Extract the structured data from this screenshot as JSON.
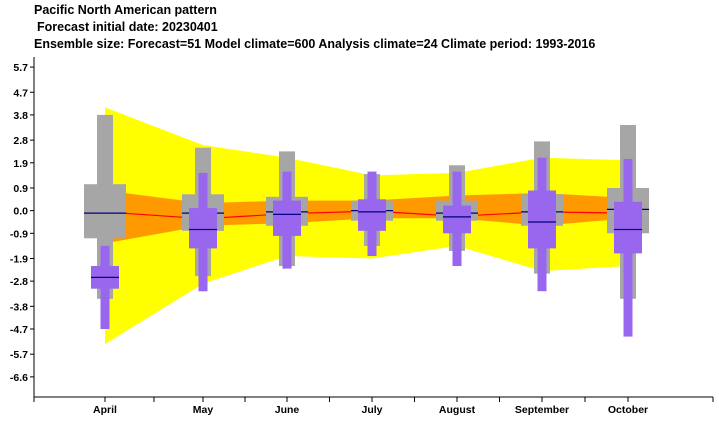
{
  "chart_data": {
    "type": "box",
    "title": "Pacific North American pattern",
    "subtitle": "Forecast initial date: 20230401",
    "info": "Ensemble size: Forecast=51 Model climate=600 Analysis climate=24   Climate period: 1993-2016",
    "categories": [
      "April",
      "May",
      "June",
      "July",
      "August",
      "September",
      "October"
    ],
    "yticks": [
      "5.7",
      "4.7",
      "3.8",
      "2.8",
      "1.9",
      "0.9",
      "0.0",
      "-0.9",
      "-1.9",
      "-2.8",
      "-3.8",
      "-4.7",
      "-5.7",
      "-6.6"
    ],
    "ylim": [
      -7.4,
      6.1
    ],
    "colors": {
      "analysis_outer": "#ffff00",
      "analysis_inner": "#ff9900",
      "analysis_median": "#ff0000",
      "model_climate": "#a6a6a6",
      "forecast": "#9966ee",
      "median_line": "#000080"
    },
    "analysis_climate": {
      "outer_upper": [
        4.1,
        2.6,
        2.1,
        1.4,
        1.5,
        2.1,
        2.0
      ],
      "outer_lower": [
        -5.3,
        -2.9,
        -1.8,
        -1.9,
        -1.4,
        -2.4,
        -2.2
      ],
      "inner_upper": [
        0.8,
        0.3,
        0.4,
        0.4,
        0.6,
        0.7,
        0.5
      ],
      "inner_lower": [
        -1.3,
        -0.6,
        -0.5,
        -0.3,
        -0.3,
        -0.6,
        -0.3
      ],
      "median": [
        -0.05,
        -0.32,
        -0.12,
        -0.02,
        -0.22,
        -0.05,
        -0.1
      ]
    },
    "model_climate": {
      "min": [
        -3.5,
        -2.6,
        -2.2,
        -1.4,
        -1.6,
        -2.5,
        -3.5
      ],
      "p10": [
        -1.1,
        -0.8,
        -0.6,
        -0.4,
        -0.4,
        -0.6,
        -0.9
      ],
      "p25": [
        -0.4,
        -0.3,
        -0.2,
        -0.15,
        -0.2,
        -0.3,
        -0.4
      ],
      "median": [
        -0.1,
        -0.1,
        -0.05,
        0.0,
        -0.1,
        -0.05,
        0.05
      ],
      "p75": [
        0.4,
        0.2,
        0.2,
        0.15,
        0.2,
        0.3,
        0.4
      ],
      "p90": [
        1.05,
        0.65,
        0.55,
        0.4,
        0.4,
        0.65,
        0.9
      ],
      "max": [
        3.8,
        2.5,
        2.35,
        1.45,
        1.8,
        2.75,
        3.4
      ]
    },
    "forecast": {
      "min": [
        -4.7,
        -3.2,
        -2.3,
        -1.8,
        -2.2,
        -3.2,
        -5.0
      ],
      "p10": [
        -3.1,
        -1.5,
        -1.0,
        -0.8,
        -0.9,
        -1.5,
        -1.7
      ],
      "p25": [
        -2.8,
        -1.1,
        -0.6,
        -0.4,
        -0.6,
        -1.0,
        -1.1
      ],
      "median": [
        -2.65,
        -0.75,
        -0.15,
        -0.05,
        -0.25,
        -0.45,
        -0.75
      ],
      "p75": [
        -2.5,
        -0.35,
        0.2,
        0.3,
        0.05,
        0.2,
        -0.3
      ],
      "p90": [
        -2.2,
        0.1,
        0.4,
        0.45,
        0.2,
        0.8,
        0.35
      ],
      "max": [
        -1.4,
        1.5,
        1.55,
        1.55,
        1.55,
        2.1,
        2.05
      ]
    }
  }
}
